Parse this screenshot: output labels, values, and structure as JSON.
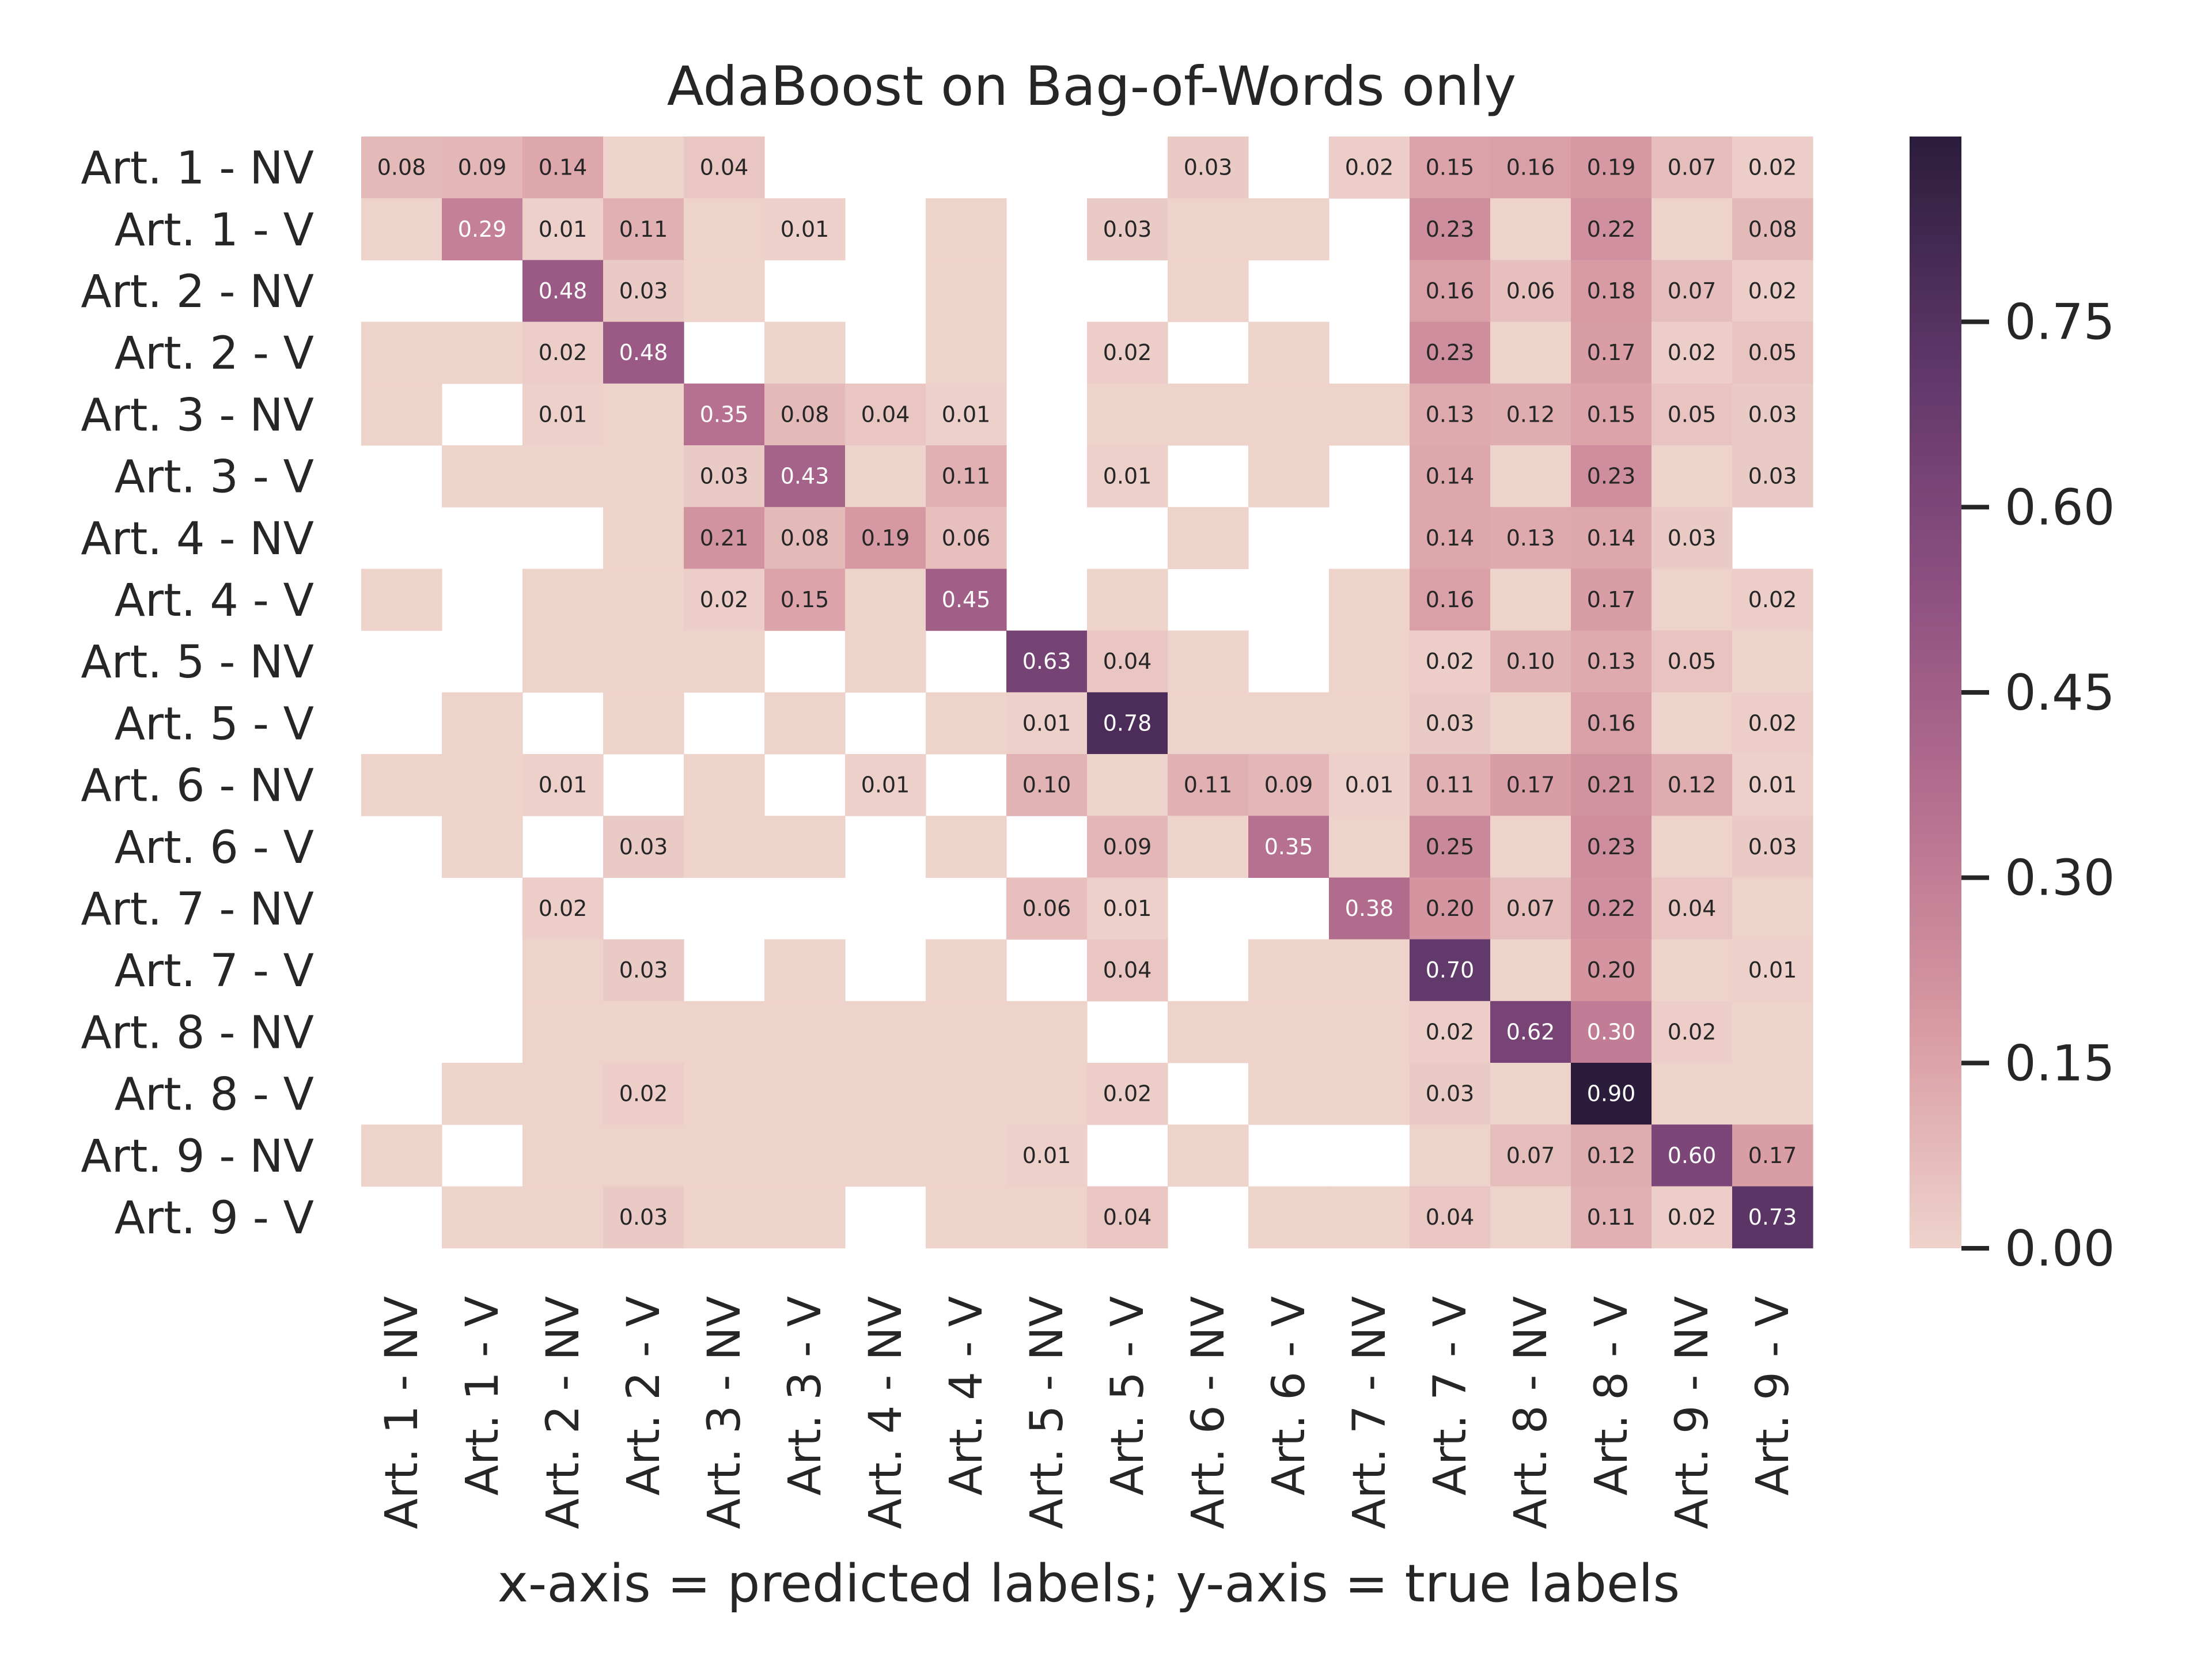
{
  "chart_data": {
    "type": "heatmap",
    "title": "AdaBoost on Bag-of-Words only",
    "xlabel": "x-axis = predicted labels; y-axis = true labels",
    "ylabel": "",
    "x_categories": [
      "Art. 1 - NV",
      "Art. 1 - V",
      "Art. 2 - NV",
      "Art. 2 - V",
      "Art. 3 - NV",
      "Art. 3 - V",
      "Art. 4 - NV",
      "Art. 4 - V",
      "Art. 5 - NV",
      "Art. 5 - V",
      "Art. 6 - NV",
      "Art. 6 - V",
      "Art. 7 - NV",
      "Art. 7 - V",
      "Art. 8 - NV",
      "Art. 8 - V",
      "Art. 9 - NV",
      "Art. 9 - V"
    ],
    "y_categories": [
      "Art. 1 - NV",
      "Art. 1 - V",
      "Art. 2 - NV",
      "Art. 2 - V",
      "Art. 3 - NV",
      "Art. 3 - V",
      "Art. 4 - NV",
      "Art. 4 - V",
      "Art. 5 - NV",
      "Art. 5 - V",
      "Art. 6 - NV",
      "Art. 6 - V",
      "Art. 7 - NV",
      "Art. 7 - V",
      "Art. 8 - NV",
      "Art. 8 - V",
      "Art. 9 - NV",
      "Art. 9 - V"
    ],
    "values": [
      [
        "0.08",
        "0.09",
        "0.14",
        "0.00",
        "0.04",
        null,
        null,
        null,
        null,
        null,
        "0.03",
        null,
        "0.02",
        "0.15",
        "0.16",
        "0.19",
        "0.07",
        "0.02"
      ],
      [
        "0.00",
        "0.29",
        "0.01",
        "0.11",
        "0.00",
        "0.01",
        null,
        "0.00",
        null,
        "0.03",
        "0.00",
        "0.00",
        null,
        "0.23",
        "0.00",
        "0.22",
        "0.00",
        "0.08"
      ],
      [
        null,
        null,
        "0.48",
        "0.03",
        "0.00",
        null,
        null,
        "0.00",
        null,
        null,
        "0.00",
        null,
        null,
        "0.16",
        "0.06",
        "0.18",
        "0.07",
        "0.02"
      ],
      [
        "0.00",
        "0.00",
        "0.02",
        "0.48",
        null,
        "0.00",
        null,
        "0.00",
        null,
        "0.02",
        null,
        "0.00",
        null,
        "0.23",
        "0.00",
        "0.17",
        "0.02",
        "0.05"
      ],
      [
        "0.00",
        null,
        "0.01",
        "0.00",
        "0.35",
        "0.08",
        "0.04",
        "0.01",
        null,
        "0.00",
        "0.00",
        "0.00",
        "0.00",
        "0.13",
        "0.12",
        "0.15",
        "0.05",
        "0.03"
      ],
      [
        null,
        "0.00",
        "0.00",
        "0.00",
        "0.03",
        "0.43",
        "0.00",
        "0.11",
        null,
        "0.01",
        null,
        "0.00",
        null,
        "0.14",
        "0.00",
        "0.23",
        "0.00",
        "0.03"
      ],
      [
        null,
        null,
        null,
        "0.00",
        "0.21",
        "0.08",
        "0.19",
        "0.06",
        null,
        null,
        "0.00",
        null,
        null,
        "0.14",
        "0.13",
        "0.14",
        "0.03",
        null
      ],
      [
        "0.00",
        null,
        "0.00",
        "0.00",
        "0.02",
        "0.15",
        "0.00",
        "0.45",
        null,
        "0.00",
        null,
        null,
        "0.00",
        "0.16",
        "0.00",
        "0.17",
        "0.00",
        "0.02"
      ],
      [
        null,
        null,
        "0.00",
        "0.00",
        "0.00",
        null,
        "0.00",
        null,
        "0.63",
        "0.04",
        "0.00",
        null,
        "0.00",
        "0.02",
        "0.10",
        "0.13",
        "0.05",
        "0.00"
      ],
      [
        null,
        "0.00",
        null,
        "0.00",
        null,
        "0.00",
        null,
        "0.00",
        "0.01",
        "0.78",
        "0.00",
        "0.00",
        "0.00",
        "0.03",
        "0.00",
        "0.16",
        "0.00",
        "0.02"
      ],
      [
        "0.00",
        "0.00",
        "0.01",
        null,
        "0.00",
        null,
        "0.01",
        null,
        "0.10",
        "0.00",
        "0.11",
        "0.09",
        "0.01",
        "0.11",
        "0.17",
        "0.21",
        "0.12",
        "0.01"
      ],
      [
        null,
        "0.00",
        null,
        "0.03",
        "0.00",
        "0.00",
        null,
        "0.00",
        null,
        "0.09",
        "0.00",
        "0.35",
        "0.00",
        "0.25",
        "0.00",
        "0.23",
        "0.00",
        "0.03"
      ],
      [
        null,
        null,
        "0.02",
        null,
        null,
        null,
        null,
        null,
        "0.06",
        "0.01",
        null,
        null,
        "0.38",
        "0.20",
        "0.07",
        "0.22",
        "0.04",
        "0.00"
      ],
      [
        null,
        null,
        "0.00",
        "0.03",
        null,
        "0.00",
        null,
        "0.00",
        null,
        "0.04",
        null,
        "0.00",
        "0.00",
        "0.70",
        "0.00",
        "0.20",
        "0.00",
        "0.01"
      ],
      [
        null,
        null,
        "0.00",
        "0.00",
        "0.00",
        "0.00",
        "0.00",
        "0.00",
        "0.00",
        null,
        "0.00",
        "0.00",
        "0.00",
        "0.02",
        "0.62",
        "0.30",
        "0.02",
        "0.00"
      ],
      [
        null,
        "0.00",
        "0.00",
        "0.02",
        "0.00",
        "0.00",
        "0.00",
        "0.00",
        "0.00",
        "0.02",
        null,
        "0.00",
        "0.00",
        "0.03",
        "0.00",
        "0.90",
        "0.00",
        "0.00"
      ],
      [
        "0.00",
        null,
        "0.00",
        "0.00",
        "0.00",
        "0.00",
        "0.00",
        "0.00",
        "0.01",
        null,
        "0.00",
        null,
        null,
        "0.00",
        "0.07",
        "0.12",
        "0.60",
        "0.17"
      ],
      [
        null,
        "0.00",
        "0.00",
        "0.03",
        "0.00",
        "0.00",
        null,
        "0.00",
        "0.00",
        "0.04",
        null,
        "0.00",
        "0.00",
        "0.04",
        "0.00",
        "0.11",
        "0.02",
        "0.73"
      ]
    ],
    "colorbar": {
      "range": [
        0.0,
        0.9
      ],
      "ticks": [
        "0.00",
        "0.15",
        "0.30",
        "0.45",
        "0.60",
        "0.75"
      ]
    },
    "colormap": [
      "#eed3cb",
      "#d89aa3",
      "#b56f8f",
      "#8c4f80",
      "#5d3668",
      "#2b1c3b"
    ],
    "grid": false,
    "legend": "colorbar-right"
  }
}
